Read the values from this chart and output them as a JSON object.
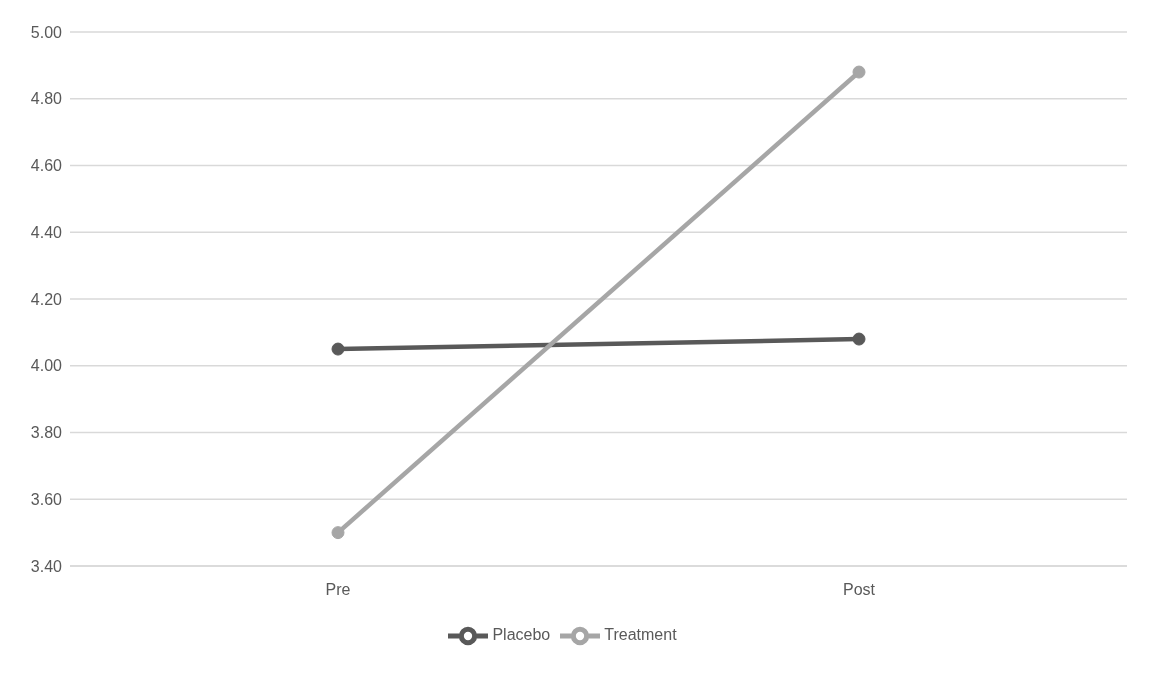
{
  "chart_data": {
    "type": "line",
    "categories": [
      "Pre",
      "Post"
    ],
    "series": [
      {
        "name": "Placebo",
        "color": "#595959",
        "values": [
          4.05,
          4.08
        ]
      },
      {
        "name": "Treatment",
        "color": "#a6a6a6",
        "values": [
          3.5,
          4.88
        ]
      }
    ],
    "ylim": [
      3.4,
      5.0
    ],
    "yticks": [
      {
        "value": 3.4,
        "label": "3.40"
      },
      {
        "value": 3.6,
        "label": "3.60"
      },
      {
        "value": 3.8,
        "label": "3.80"
      },
      {
        "value": 4.0,
        "label": "4.00"
      },
      {
        "value": 4.2,
        "label": "4.20"
      },
      {
        "value": 4.4,
        "label": "4.40"
      },
      {
        "value": 4.6,
        "label": "4.60"
      },
      {
        "value": 4.8,
        "label": "4.80"
      },
      {
        "value": 5.0,
        "label": "5.00"
      }
    ],
    "grid": "y",
    "legend": "bottom",
    "marker": "circle",
    "line_style": "solid"
  }
}
